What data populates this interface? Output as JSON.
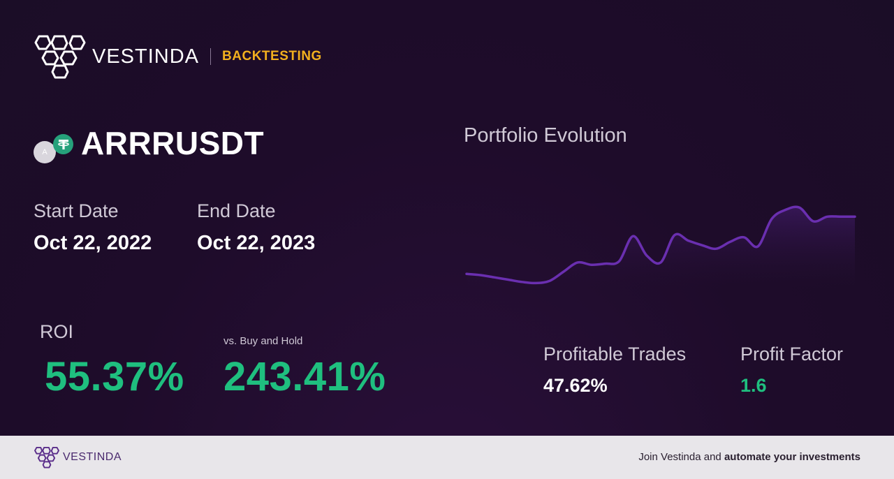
{
  "brand": {
    "name": "VESTINDA",
    "tag": "BACKTESTING"
  },
  "pair": {
    "symbol": "ARRRUSDT",
    "base_icon_letter": "A",
    "quote_icon": "tether-icon"
  },
  "dates": {
    "start_label": "Start Date",
    "start_value": "Oct 22, 2022",
    "end_label": "End Date",
    "end_value": "Oct 22, 2023"
  },
  "roi": {
    "label": "ROI",
    "value": "55.37%"
  },
  "buy_hold": {
    "label": "vs. Buy and Hold",
    "value": "243.41%"
  },
  "stats": {
    "profitable_label": "Profitable Trades",
    "profitable_value": "47.62%",
    "factor_label": "Profit Factor",
    "factor_value": "1.6"
  },
  "colors": {
    "accent_green": "#1fbf7f",
    "accent_yellow": "#f2b01e",
    "line_purple": "#6a2fb0"
  },
  "chart_data": {
    "type": "area",
    "title": "Portfolio Evolution",
    "xlabel": "",
    "ylabel": "",
    "grid": false,
    "legend": "none",
    "ylim": [
      0,
      100
    ],
    "values": [
      12,
      11,
      9,
      7,
      5,
      4,
      6,
      14,
      22,
      20,
      21,
      23,
      45,
      28,
      22,
      46,
      41,
      37,
      34,
      40,
      44,
      36,
      60,
      68,
      70,
      58,
      62,
      62,
      62
    ]
  },
  "footer": {
    "name": "VESTINDA",
    "cta_prefix": "Join Vestinda and ",
    "cta_bold": "automate your investments"
  }
}
